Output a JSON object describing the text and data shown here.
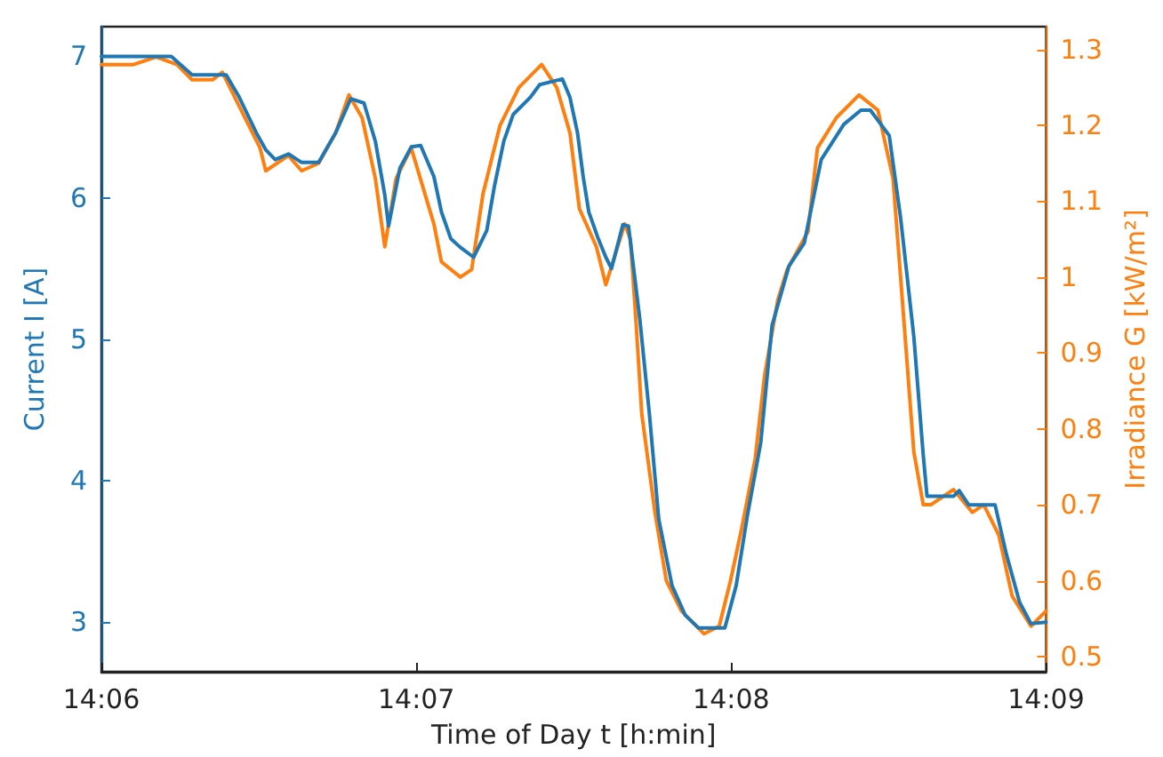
{
  "chart_data": {
    "type": "line",
    "xlabel": "Time of Day t [h:min]",
    "ylabel": "Current I [A]",
    "y2label": "Irradiance G [kW/m²]",
    "xlim": [
      14.1,
      14.15
    ],
    "xticks": [
      {
        "value": 14.1,
        "label": "14:06"
      },
      {
        "value": 14.116667,
        "label": "14:07"
      },
      {
        "value": 14.133333,
        "label": "14:08"
      },
      {
        "value": 14.15,
        "label": "14:09"
      }
    ],
    "ylim": [
      2.65,
      7.21
    ],
    "yticks": [
      3,
      4,
      5,
      6,
      7
    ],
    "y2lim": [
      0.48,
      1.33
    ],
    "y2ticks": [
      0.5,
      0.6,
      0.7,
      0.8,
      0.9,
      1.0,
      1.1,
      1.2,
      1.3
    ],
    "grid": false,
    "marker": "none",
    "line_style": "solid",
    "series": [
      {
        "color": "#1f77b4",
        "x": [
          14.1,
          14.1037,
          14.1048,
          14.1066,
          14.1073,
          14.1082,
          14.1087,
          14.1092,
          14.1099,
          14.1106,
          14.1115,
          14.1124,
          14.1132,
          14.1139,
          14.1145,
          14.115,
          14.1152,
          14.1158,
          14.1164,
          14.1169,
          14.1176,
          14.118,
          14.1185,
          14.119,
          14.1197,
          14.1204,
          14.1208,
          14.1213,
          14.1218,
          14.1227,
          14.1232,
          14.1244,
          14.1248,
          14.1252,
          14.1255,
          14.1258,
          14.1263,
          14.1267,
          14.127,
          14.1276,
          14.1279,
          14.1285,
          14.129,
          14.1295,
          14.1302,
          14.1309,
          14.1316,
          14.133,
          14.1336,
          14.1342,
          14.1349,
          14.1355,
          14.1364,
          14.1372,
          14.1381,
          14.1393,
          14.1402,
          14.1407,
          14.1417,
          14.1423,
          14.143,
          14.1435,
          14.1437,
          14.1451,
          14.1454,
          14.1459,
          14.1473,
          14.1479,
          14.1486,
          14.1492,
          14.15
        ],
        "values": [
          7.0,
          7.0,
          6.87,
          6.87,
          6.71,
          6.46,
          6.34,
          6.27,
          6.31,
          6.25,
          6.25,
          6.46,
          6.7,
          6.67,
          6.4,
          6.02,
          5.8,
          6.21,
          6.36,
          6.37,
          6.15,
          5.9,
          5.71,
          5.65,
          5.58,
          5.77,
          6.08,
          6.4,
          6.59,
          6.71,
          6.8,
          6.84,
          6.71,
          6.46,
          6.15,
          5.9,
          5.71,
          5.58,
          5.5,
          5.81,
          5.8,
          5.14,
          4.48,
          3.73,
          3.26,
          3.05,
          2.96,
          2.96,
          3.26,
          3.76,
          4.27,
          5.1,
          5.52,
          5.68,
          6.27,
          6.52,
          6.62,
          6.62,
          6.44,
          5.86,
          5.02,
          4.18,
          3.89,
          3.89,
          3.93,
          3.83,
          3.83,
          3.48,
          3.14,
          2.99,
          3.0
        ]
      },
      {
        "color": "#ff7f0e",
        "axis": "y2",
        "x": [
          14.1,
          14.1017,
          14.1029,
          14.104,
          14.1048,
          14.1059,
          14.1064,
          14.1068,
          14.1078,
          14.1084,
          14.1087,
          14.1099,
          14.1106,
          14.1115,
          14.1124,
          14.1131,
          14.1138,
          14.1145,
          14.115,
          14.1156,
          14.1164,
          14.1176,
          14.118,
          14.119,
          14.1196,
          14.1202,
          14.1211,
          14.1221,
          14.1233,
          14.1241,
          14.1248,
          14.1253,
          14.1262,
          14.1267,
          14.1277,
          14.128,
          14.1283,
          14.1286,
          14.1293,
          14.1299,
          14.1307,
          14.1319,
          14.1327,
          14.1333,
          14.1339,
          14.1346,
          14.1351,
          14.1358,
          14.1363,
          14.1374,
          14.1379,
          14.1389,
          14.1401,
          14.1411,
          14.1419,
          14.1423,
          14.143,
          14.1435,
          14.1439,
          14.1451,
          14.1461,
          14.1467,
          14.1475,
          14.1482,
          14.1492,
          14.15
        ],
        "values": [
          1.28,
          1.28,
          1.29,
          1.28,
          1.26,
          1.26,
          1.27,
          1.25,
          1.2,
          1.17,
          1.14,
          1.16,
          1.14,
          1.15,
          1.19,
          1.24,
          1.21,
          1.13,
          1.04,
          1.13,
          1.17,
          1.07,
          1.02,
          1.0,
          1.01,
          1.11,
          1.2,
          1.25,
          1.28,
          1.25,
          1.19,
          1.09,
          1.04,
          0.99,
          1.07,
          1.05,
          0.94,
          0.82,
          0.69,
          0.6,
          0.56,
          0.53,
          0.54,
          0.6,
          0.67,
          0.76,
          0.87,
          0.97,
          1.01,
          1.06,
          1.17,
          1.21,
          1.24,
          1.22,
          1.13,
          1.0,
          0.77,
          0.7,
          0.7,
          0.72,
          0.69,
          0.7,
          0.66,
          0.58,
          0.54,
          0.56
        ]
      }
    ]
  }
}
